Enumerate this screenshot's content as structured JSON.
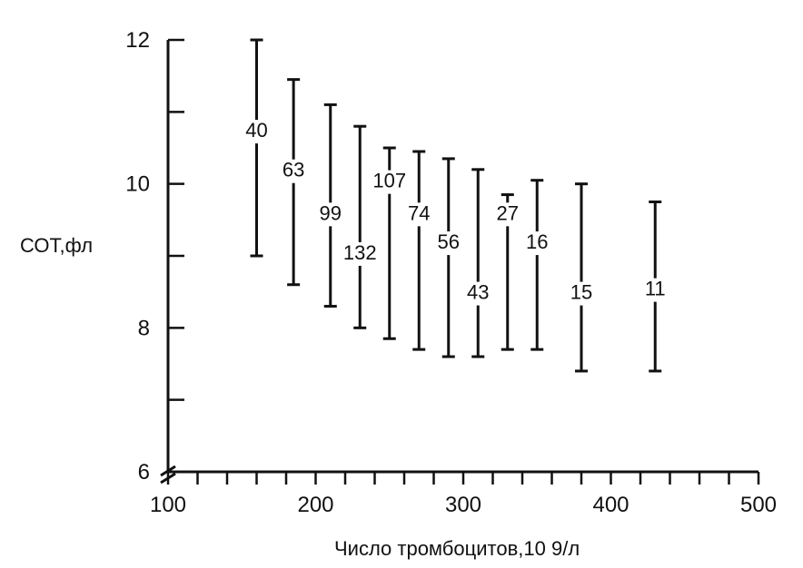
{
  "chart_data": {
    "type": "errorbar",
    "xlabel": "Число тромбоцитов,10 9/л",
    "ylabel": "СОТ,фл",
    "xlim": [
      100,
      500
    ],
    "ylim": [
      6,
      12
    ],
    "x_ticks": [
      {
        "value": 100,
        "label": "100"
      },
      {
        "value": 120,
        "label": ""
      },
      {
        "value": 140,
        "label": ""
      },
      {
        "value": 160,
        "label": ""
      },
      {
        "value": 180,
        "label": ""
      },
      {
        "value": 200,
        "label": "200"
      },
      {
        "value": 220,
        "label": ""
      },
      {
        "value": 240,
        "label": ""
      },
      {
        "value": 260,
        "label": ""
      },
      {
        "value": 280,
        "label": ""
      },
      {
        "value": 300,
        "label": "300"
      },
      {
        "value": 320,
        "label": ""
      },
      {
        "value": 340,
        "label": ""
      },
      {
        "value": 360,
        "label": ""
      },
      {
        "value": 380,
        "label": ""
      },
      {
        "value": 400,
        "label": "400"
      },
      {
        "value": 420,
        "label": ""
      },
      {
        "value": 440,
        "label": ""
      },
      {
        "value": 460,
        "label": ""
      },
      {
        "value": 480,
        "label": ""
      },
      {
        "value": 500,
        "label": "500"
      }
    ],
    "y_ticks": [
      {
        "value": 6,
        "label": "6"
      },
      {
        "value": 7,
        "label": ""
      },
      {
        "value": 8,
        "label": "8"
      },
      {
        "value": 9,
        "label": ""
      },
      {
        "value": 10,
        "label": "10"
      },
      {
        "value": 11,
        "label": ""
      },
      {
        "value": 12,
        "label": "12"
      }
    ],
    "bars": [
      {
        "x": 160,
        "low": 9.0,
        "high": 12.0,
        "n": "40",
        "label_y": 10.65
      },
      {
        "x": 185,
        "low": 8.6,
        "high": 11.45,
        "n": "63",
        "label_y": 10.1
      },
      {
        "x": 210,
        "low": 8.3,
        "high": 11.1,
        "n": "99",
        "label_y": 9.5
      },
      {
        "x": 230,
        "low": 8.0,
        "high": 10.8,
        "n": "132",
        "label_y": 8.95
      },
      {
        "x": 250,
        "low": 7.85,
        "high": 10.5,
        "n": "107",
        "label_y": 9.95
      },
      {
        "x": 270,
        "low": 7.7,
        "high": 10.45,
        "n": "74",
        "label_y": 9.5
      },
      {
        "x": 290,
        "low": 7.6,
        "high": 10.35,
        "n": "56",
        "label_y": 9.1
      },
      {
        "x": 310,
        "low": 7.6,
        "high": 10.2,
        "n": "43",
        "label_y": 8.4
      },
      {
        "x": 330,
        "low": 7.7,
        "high": 9.85,
        "n": "27",
        "label_y": 9.5
      },
      {
        "x": 350,
        "low": 7.7,
        "high": 10.05,
        "n": "16",
        "label_y": 9.1
      },
      {
        "x": 380,
        "low": 7.4,
        "high": 10.0,
        "n": "15",
        "label_y": 8.4
      },
      {
        "x": 430,
        "low": 7.4,
        "high": 9.75,
        "n": "11",
        "label_y": 8.45
      }
    ]
  }
}
